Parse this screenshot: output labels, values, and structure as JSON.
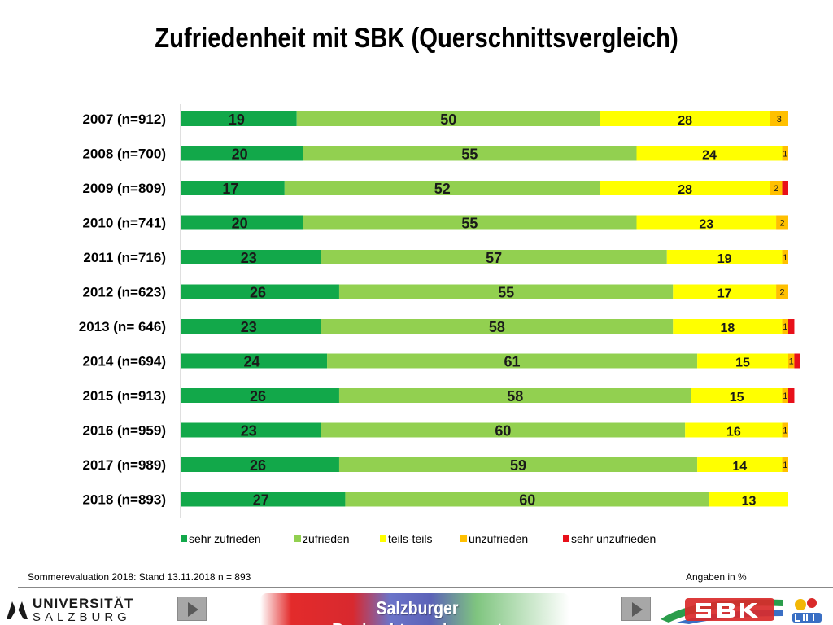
{
  "title": "Zufriedenheit mit SBK (Querschnittsvergleich)",
  "chart_data": {
    "type": "bar",
    "orientation": "horizontal",
    "stacked": true,
    "categories": [
      "2007 (n=912)",
      "2008 (n=700)",
      "2009 (n=809)",
      "2010 (n=741)",
      "2011 (n=716)",
      "2012 (n=623)",
      "2013 (n= 646)",
      "2014 (n=694)",
      "2015 (n=913)",
      "2016 (n=959)",
      "2017 (n=989)",
      "2018 (n=893)"
    ],
    "series": [
      {
        "name": "sehr zufrieden",
        "color": "#12a84a",
        "values": [
          19,
          20,
          17,
          20,
          23,
          26,
          23,
          24,
          26,
          23,
          26,
          27
        ],
        "labels": [
          "19",
          "20",
          "17",
          "20",
          "23",
          "26",
          "23",
          "24",
          "26",
          "23",
          "26",
          "27"
        ]
      },
      {
        "name": "zufrieden",
        "color": "#92d050",
        "values": [
          50,
          55,
          52,
          55,
          57,
          55,
          58,
          61,
          58,
          60,
          59,
          60
        ],
        "labels": [
          "50",
          "55",
          "52",
          "55",
          "57",
          "55",
          "58",
          "61",
          "58",
          "60",
          "59",
          "60"
        ]
      },
      {
        "name": "teils-teils",
        "color": "#ffff00",
        "values": [
          28,
          24,
          28,
          23,
          19,
          17,
          18,
          15,
          15,
          16,
          14,
          13
        ],
        "labels": [
          "28",
          "24",
          "28",
          "23",
          "19",
          "17",
          "18",
          "15",
          "15",
          "16",
          "14",
          "13"
        ]
      },
      {
        "name": "unzufrieden",
        "color": "#ffc000",
        "values": [
          3,
          1,
          2,
          2,
          1,
          2,
          1,
          1,
          1,
          1,
          1,
          0
        ],
        "labels": [
          "3",
          "1",
          "2",
          "2",
          "1",
          "2",
          "1",
          "1",
          "1",
          "1",
          "1",
          ""
        ]
      },
      {
        "name": "sehr unzufrieden",
        "color": "#e8101a",
        "values": [
          0,
          0,
          1,
          0,
          0,
          0,
          1,
          1,
          1,
          0,
          0,
          0
        ],
        "labels": [
          "",
          "",
          "",
          "",
          "",
          "",
          "",
          "",
          "",
          "",
          "",
          ""
        ]
      }
    ],
    "xlim": [
      0,
      100
    ],
    "legend": "bottom",
    "grid": false
  },
  "footer": {
    "left": "Sommerevaluation 2018: Stand  13.11.2018  n = 893",
    "right": "Angaben in %"
  },
  "bottom_bar": {
    "university_line1": "UNIVERSITÄT",
    "university_line2": "SALZBURG",
    "banner": "Salzburger Beobachtungskonzept"
  }
}
